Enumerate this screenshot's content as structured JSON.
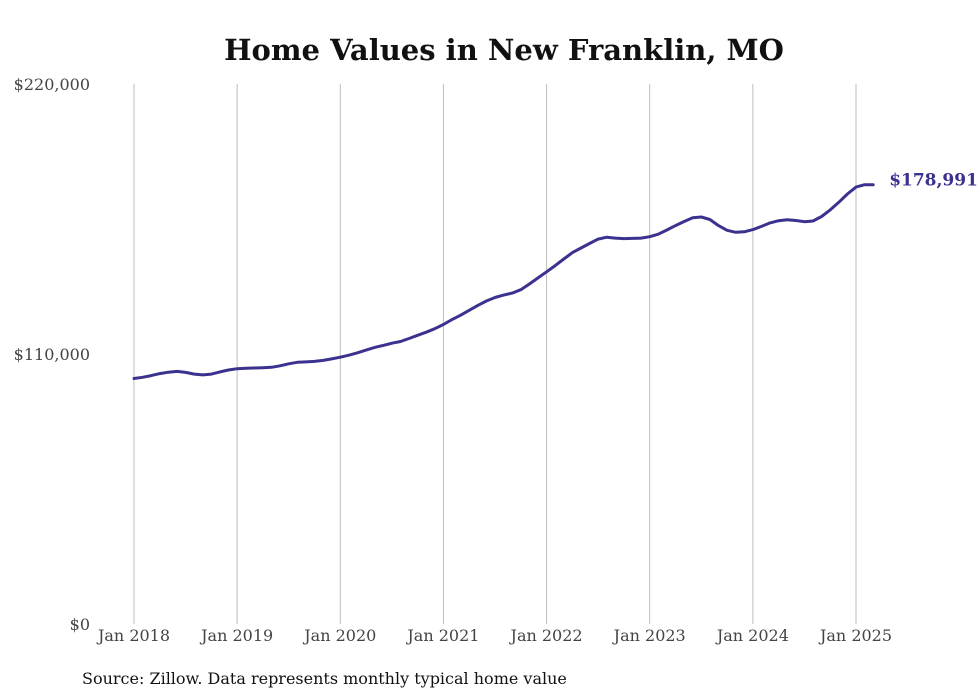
{
  "chart_data": {
    "type": "line",
    "title": "Home Values in New Franklin, MO",
    "source": "Source: Zillow. Data represents monthly typical home value",
    "xlabel": "",
    "ylabel": "",
    "ylim": [
      0,
      220000
    ],
    "y_ticks": [
      {
        "value": 220000,
        "label": "$220,000"
      },
      {
        "value": 110000,
        "label": "$110,000"
      },
      {
        "value": 0,
        "label": "$0"
      }
    ],
    "x_ticks": [
      {
        "value": "2018-01",
        "label": "Jan 2018"
      },
      {
        "value": "2019-01",
        "label": "Jan 2019"
      },
      {
        "value": "2020-01",
        "label": "Jan 2020"
      },
      {
        "value": "2021-01",
        "label": "Jan 2021"
      },
      {
        "value": "2022-01",
        "label": "Jan 2022"
      },
      {
        "value": "2023-01",
        "label": "Jan 2023"
      },
      {
        "value": "2024-01",
        "label": "Jan 2024"
      },
      {
        "value": "2025-01",
        "label": "Jan 2025"
      }
    ],
    "grid": "vertical",
    "line_color": "#3b3290",
    "end_label": "$178,991",
    "series": [
      {
        "x": [
          "2018-01",
          "2018-02",
          "2018-03",
          "2018-04",
          "2018-05",
          "2018-06",
          "2018-07",
          "2018-08",
          "2018-09",
          "2018-10",
          "2018-11",
          "2018-12",
          "2019-01",
          "2019-02",
          "2019-03",
          "2019-04",
          "2019-05",
          "2019-06",
          "2019-07",
          "2019-08",
          "2019-09",
          "2019-10",
          "2019-11",
          "2019-12",
          "2020-01",
          "2020-02",
          "2020-03",
          "2020-04",
          "2020-05",
          "2020-06",
          "2020-07",
          "2020-08",
          "2020-09",
          "2020-10",
          "2020-11",
          "2020-12",
          "2021-01",
          "2021-02",
          "2021-03",
          "2021-04",
          "2021-05",
          "2021-06",
          "2021-07",
          "2021-08",
          "2021-09",
          "2021-10",
          "2021-11",
          "2021-12",
          "2022-01",
          "2022-02",
          "2022-03",
          "2022-04",
          "2022-05",
          "2022-06",
          "2022-07",
          "2022-08",
          "2022-09",
          "2022-10",
          "2022-11",
          "2022-12",
          "2023-01",
          "2023-02",
          "2023-03",
          "2023-04",
          "2023-05",
          "2023-06",
          "2023-07",
          "2023-08",
          "2023-09",
          "2023-10",
          "2023-11",
          "2023-12",
          "2024-01",
          "2024-02",
          "2024-03",
          "2024-04",
          "2024-05",
          "2024-06",
          "2024-07",
          "2024-08",
          "2024-09",
          "2024-10",
          "2024-11",
          "2024-12",
          "2025-01",
          "2025-02",
          "2025-03"
        ],
        "values": [
          100000,
          100500,
          101200,
          102000,
          102600,
          102900,
          102500,
          101800,
          101500,
          101800,
          102700,
          103500,
          104000,
          104200,
          104300,
          104400,
          104600,
          105200,
          106000,
          106600,
          106800,
          107000,
          107400,
          108000,
          108700,
          109500,
          110500,
          111600,
          112700,
          113500,
          114400,
          115100,
          116300,
          117600,
          118900,
          120300,
          122000,
          124000,
          125800,
          127800,
          129800,
          131600,
          133000,
          134000,
          134800,
          136200,
          138500,
          141000,
          143500,
          146000,
          148700,
          151300,
          153200,
          155000,
          156800,
          157600,
          157200,
          157000,
          157100,
          157200,
          157800,
          158800,
          160500,
          162300,
          164000,
          165500,
          165800,
          164800,
          162300,
          160400,
          159600,
          159800,
          160700,
          162000,
          163400,
          164300,
          164700,
          164400,
          163900,
          164200,
          166000,
          168700,
          171800,
          175200,
          178000,
          178991,
          178991
        ]
      }
    ]
  }
}
